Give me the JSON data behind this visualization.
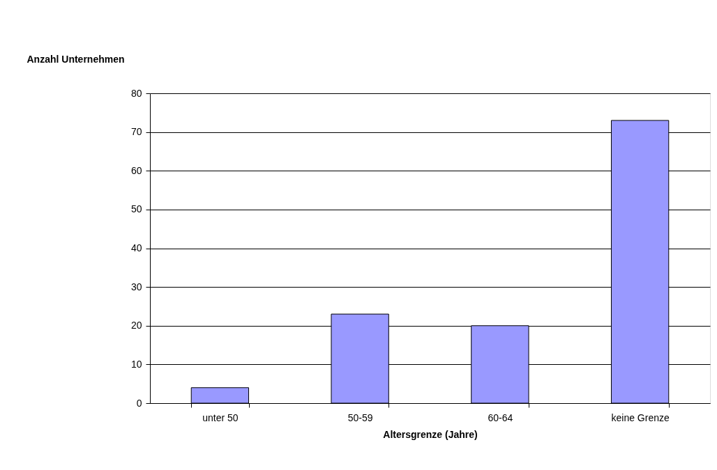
{
  "chart_data": {
    "type": "bar",
    "xlabel": "Altersgrenze (Jahre)",
    "ylabel": "Anzahl Unternehmen",
    "categories": [
      "unter 50",
      "50-59",
      "60-64",
      "keine Grenze"
    ],
    "values": [
      4,
      23,
      20,
      73
    ],
    "color": "#9999ff",
    "ylim": [
      0,
      80
    ],
    "yticks": [
      0,
      10,
      20,
      30,
      40,
      50,
      60,
      70,
      80
    ],
    "grid": "y"
  }
}
